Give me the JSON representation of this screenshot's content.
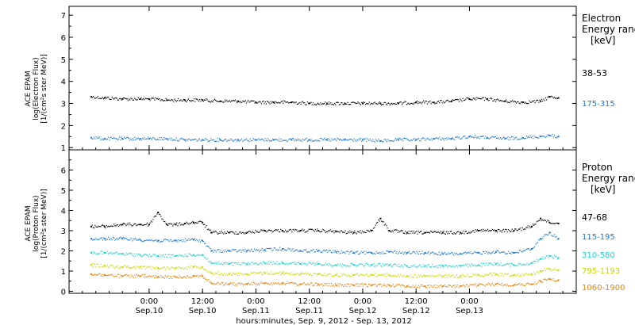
{
  "chart_data": [
    {
      "type": "scatter",
      "panel": "electron",
      "ylabel_lines": [
        "ACE EPAM",
        "log(Electron Flux)",
        "[1/(cm²s ster MeV)]"
      ],
      "legend_title_lines": [
        "Electron",
        "Energy ranges",
        "[keV]"
      ],
      "ylim": [
        0.9,
        7.4
      ],
      "yticks": [
        1,
        2,
        3,
        4,
        5,
        6,
        7
      ],
      "series": [
        {
          "name": "38-53",
          "color": "#000000",
          "x": [
            -13,
            -10,
            -6,
            -2,
            0,
            4,
            8,
            12,
            16,
            20,
            24,
            28,
            32,
            36,
            40,
            44,
            48,
            52,
            56,
            60,
            64,
            68,
            72,
            76,
            80,
            84,
            88,
            90,
            92
          ],
          "y": [
            3.3,
            3.25,
            3.2,
            3.2,
            3.2,
            3.15,
            3.15,
            3.15,
            3.1,
            3.1,
            3.05,
            3.05,
            3.05,
            3.0,
            3.0,
            3.0,
            3.0,
            3.0,
            3.0,
            3.05,
            3.05,
            3.1,
            3.2,
            3.2,
            3.1,
            3.05,
            3.1,
            3.3,
            3.25
          ]
        },
        {
          "name": "175-315",
          "color": "#1e78d2",
          "x": [
            -13,
            -10,
            -6,
            -2,
            0,
            4,
            8,
            12,
            16,
            20,
            24,
            28,
            32,
            36,
            40,
            44,
            48,
            52,
            56,
            60,
            64,
            68,
            72,
            76,
            80,
            84,
            88,
            90,
            92
          ],
          "y": [
            1.45,
            1.4,
            1.4,
            1.4,
            1.4,
            1.4,
            1.35,
            1.35,
            1.35,
            1.35,
            1.35,
            1.35,
            1.35,
            1.35,
            1.35,
            1.35,
            1.35,
            1.3,
            1.35,
            1.35,
            1.4,
            1.4,
            1.5,
            1.45,
            1.4,
            1.45,
            1.5,
            1.55,
            1.5
          ]
        }
      ]
    },
    {
      "type": "scatter",
      "panel": "proton",
      "ylabel_lines": [
        "ACE EPAM",
        "log(Proton Flux)",
        "[1/(cm²s ster MeV)]"
      ],
      "legend_title_lines": [
        "Proton",
        "Energy ranges",
        "[keV]"
      ],
      "ylim": [
        -0.1,
        7.0
      ],
      "yticks": [
        0,
        1,
        2,
        3,
        4,
        5,
        6
      ],
      "series": [
        {
          "name": "47-68",
          "color": "#000000",
          "x": [
            -13,
            -10,
            -6,
            -2,
            0,
            2,
            4,
            6,
            8,
            10,
            12,
            14,
            18,
            22,
            26,
            30,
            34,
            38,
            42,
            46,
            50,
            52,
            54,
            58,
            62,
            66,
            70,
            74,
            78,
            82,
            86,
            88,
            90,
            92
          ],
          "y": [
            3.2,
            3.2,
            3.3,
            3.3,
            3.3,
            3.9,
            3.3,
            3.3,
            3.35,
            3.4,
            3.4,
            2.9,
            2.9,
            2.9,
            3.0,
            3.0,
            3.0,
            3.0,
            2.95,
            2.9,
            3.0,
            3.6,
            3.0,
            2.9,
            2.9,
            2.9,
            2.9,
            3.0,
            3.0,
            3.0,
            3.2,
            3.6,
            3.4,
            3.35
          ]
        },
        {
          "name": "115-195",
          "color": "#1e78d2",
          "x": [
            -13,
            -10,
            -6,
            -2,
            2,
            6,
            10,
            12,
            14,
            18,
            22,
            26,
            30,
            34,
            38,
            42,
            46,
            50,
            54,
            58,
            62,
            66,
            70,
            74,
            78,
            82,
            86,
            88,
            90,
            92
          ],
          "y": [
            2.6,
            2.6,
            2.6,
            2.55,
            2.5,
            2.5,
            2.55,
            2.5,
            2.0,
            2.0,
            2.0,
            2.05,
            2.1,
            2.0,
            2.0,
            1.95,
            1.9,
            1.9,
            1.95,
            1.9,
            1.9,
            1.85,
            1.85,
            1.9,
            1.95,
            1.9,
            2.1,
            2.6,
            2.9,
            2.6
          ]
        },
        {
          "name": "310-580",
          "color": "#20d0d0",
          "x": [
            -13,
            -10,
            -6,
            -2,
            2,
            6,
            10,
            12,
            14,
            18,
            22,
            26,
            30,
            34,
            38,
            42,
            46,
            50,
            54,
            58,
            62,
            66,
            70,
            74,
            78,
            82,
            86,
            88,
            90,
            92
          ],
          "y": [
            1.9,
            1.9,
            1.85,
            1.8,
            1.75,
            1.75,
            1.8,
            1.8,
            1.4,
            1.35,
            1.35,
            1.4,
            1.4,
            1.35,
            1.35,
            1.3,
            1.3,
            1.3,
            1.3,
            1.25,
            1.25,
            1.25,
            1.25,
            1.3,
            1.35,
            1.3,
            1.4,
            1.6,
            1.75,
            1.65
          ]
        },
        {
          "name": "795-1193",
          "color": "#c8d800",
          "x": [
            -13,
            -10,
            -6,
            -2,
            2,
            6,
            10,
            12,
            14,
            18,
            22,
            26,
            30,
            34,
            38,
            42,
            46,
            50,
            54,
            58,
            62,
            66,
            70,
            74,
            78,
            82,
            86,
            88,
            90,
            92
          ],
          "y": [
            1.3,
            1.25,
            1.2,
            1.2,
            1.15,
            1.15,
            1.2,
            1.2,
            0.9,
            0.85,
            0.85,
            0.9,
            0.9,
            0.85,
            0.85,
            0.8,
            0.8,
            0.8,
            0.8,
            0.75,
            0.75,
            0.75,
            0.75,
            0.8,
            0.85,
            0.8,
            0.85,
            1.0,
            1.1,
            1.05
          ]
        },
        {
          "name": "1060-1900",
          "color": "#e8820c",
          "x": [
            -13,
            -10,
            -6,
            -2,
            2,
            6,
            10,
            12,
            14,
            18,
            22,
            26,
            30,
            34,
            38,
            42,
            46,
            50,
            54,
            58,
            62,
            66,
            70,
            74,
            78,
            82,
            86,
            88,
            90,
            92
          ],
          "y": [
            0.85,
            0.8,
            0.75,
            0.75,
            0.7,
            0.7,
            0.75,
            0.75,
            0.4,
            0.35,
            0.35,
            0.4,
            0.4,
            0.35,
            0.35,
            0.3,
            0.3,
            0.3,
            0.3,
            0.25,
            0.25,
            0.25,
            0.25,
            0.3,
            0.35,
            0.3,
            0.35,
            0.5,
            0.6,
            0.55
          ]
        }
      ]
    }
  ],
  "x_axis": {
    "xlim": [
      -18,
      96
    ],
    "title": "hours:minutes, Sep.  9, 2012 - Sep. 13, 2012",
    "ticks": [
      {
        "x": 0,
        "time": "0:00",
        "date": "Sep.10"
      },
      {
        "x": 12,
        "time": "12:00",
        "date": "Sep.10"
      },
      {
        "x": 24,
        "time": "0:00",
        "date": "Sep.11"
      },
      {
        "x": 36,
        "time": "12:00",
        "date": "Sep.11"
      },
      {
        "x": 48,
        "time": "0:00",
        "date": "Sep.12"
      },
      {
        "x": 60,
        "time": "12:00",
        "date": "Sep.12"
      },
      {
        "x": 72,
        "time": "0:00",
        "date": "Sep.13"
      }
    ]
  },
  "colors": {
    "axis": "#000000",
    "background": "#ffffff"
  }
}
